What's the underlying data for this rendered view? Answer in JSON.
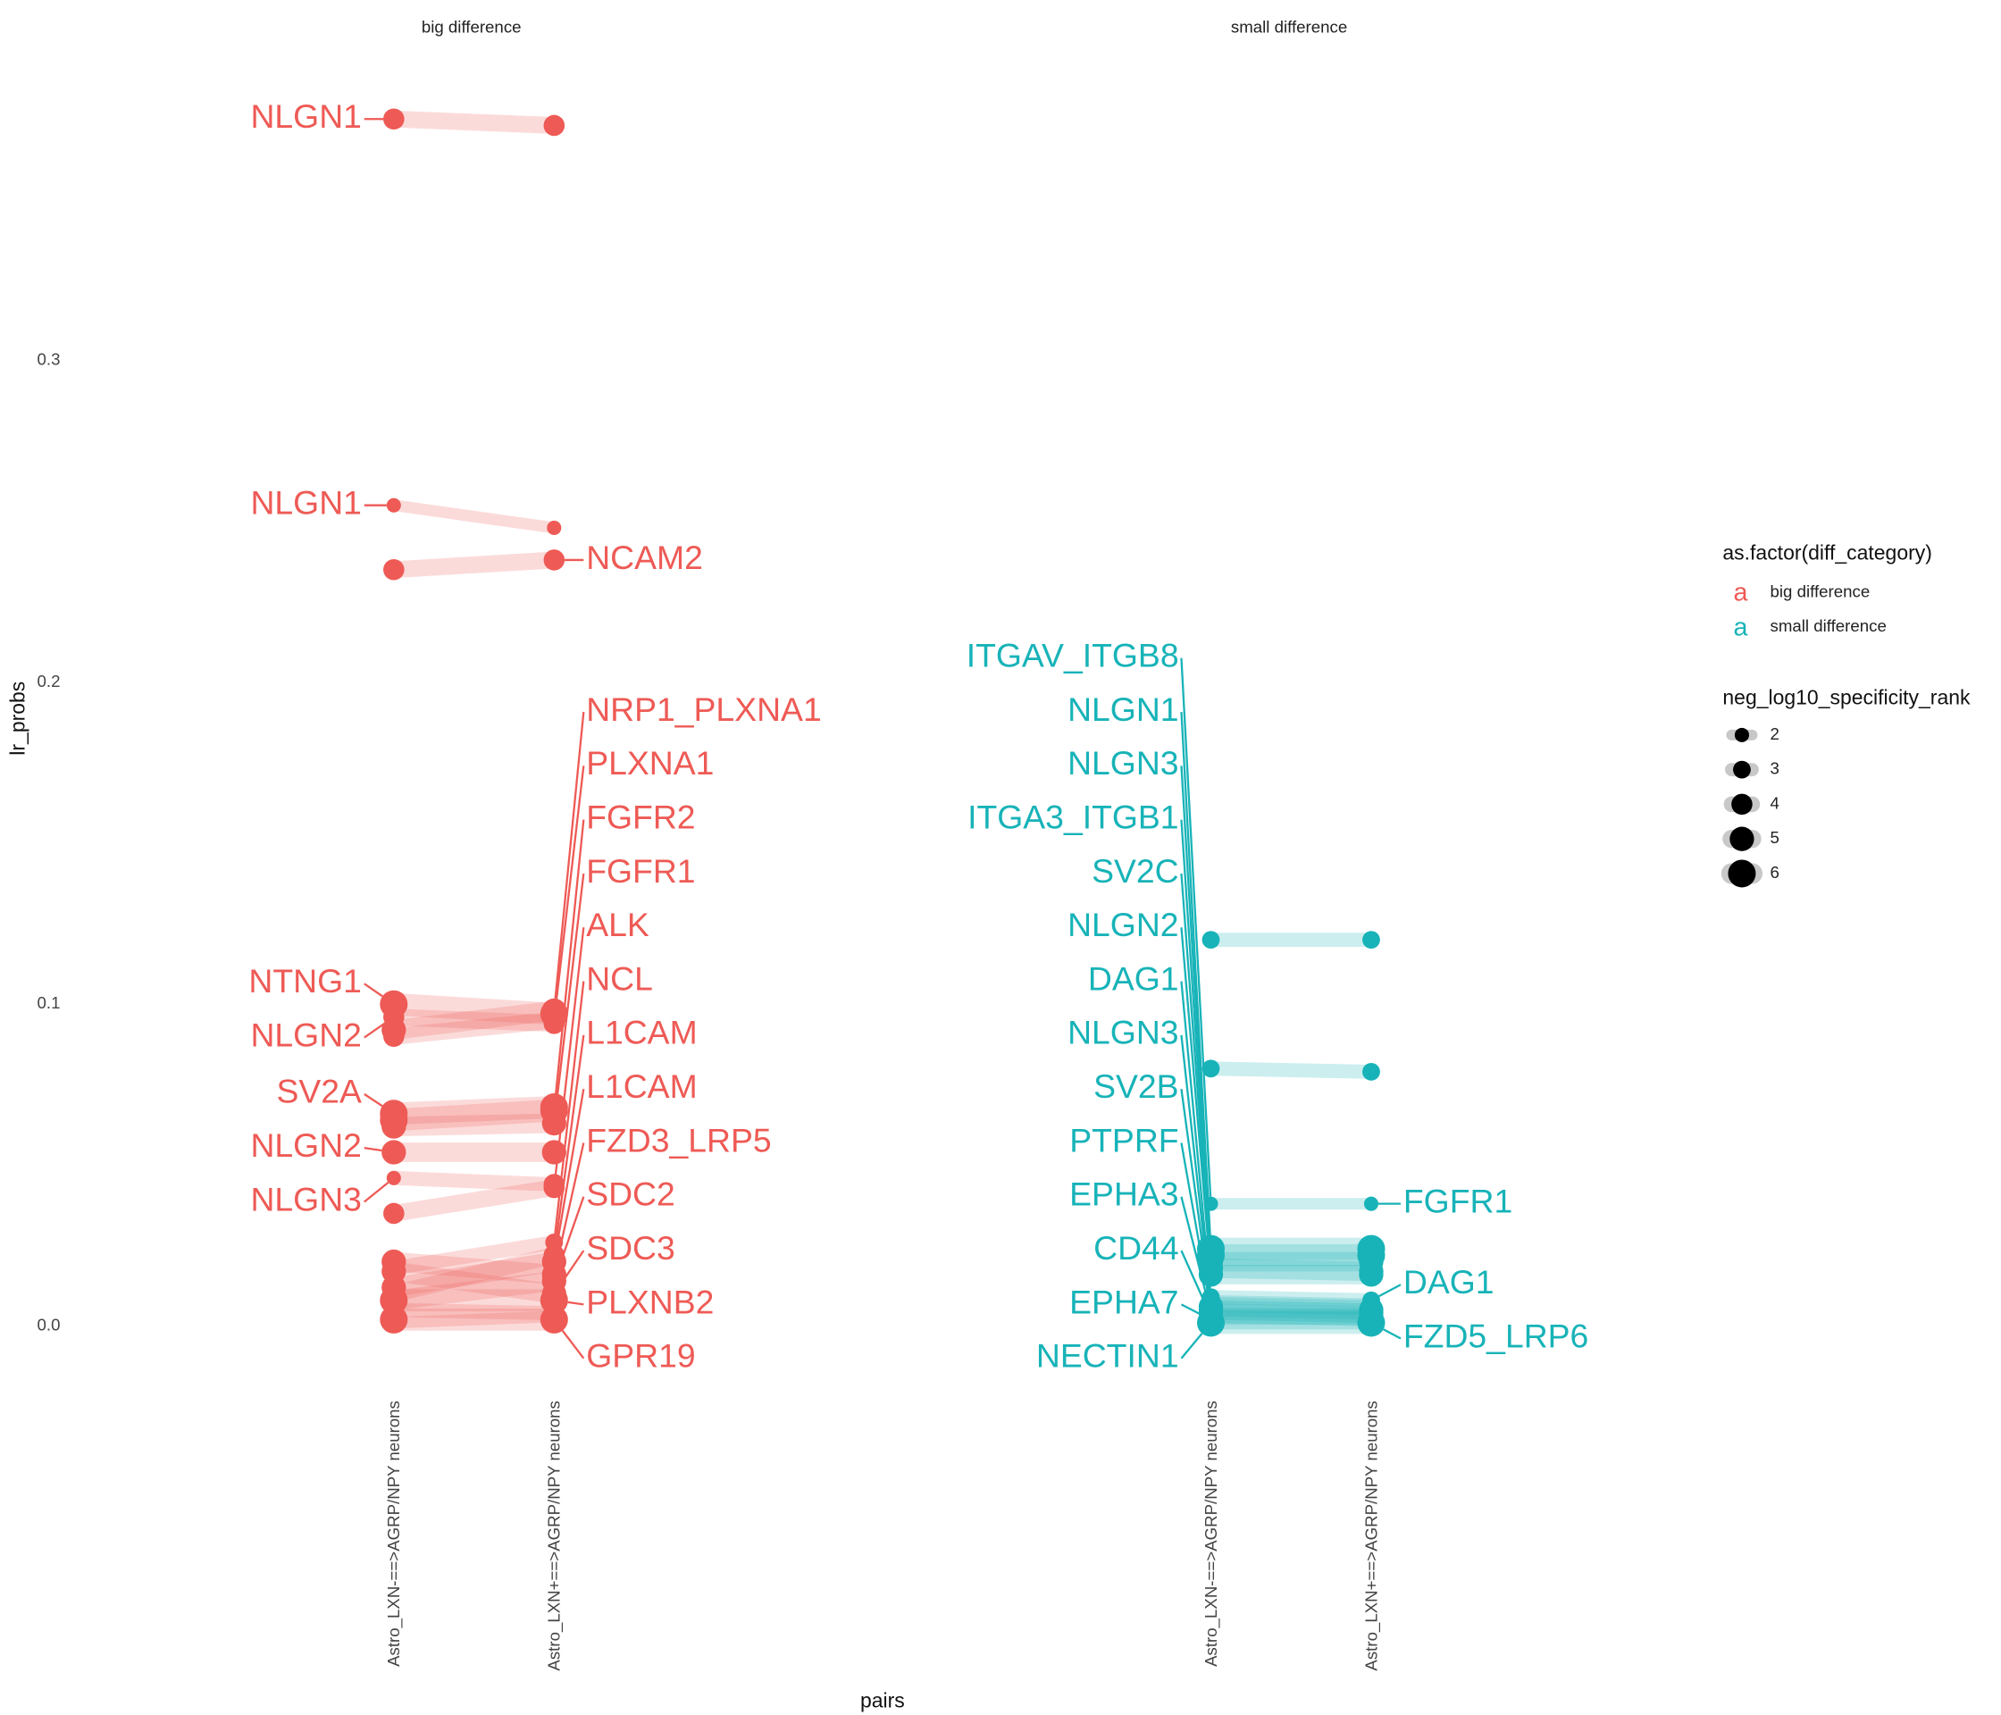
{
  "chart_data": {
    "type": "slope",
    "x_label": "pairs",
    "y_label": "lr_probs",
    "categories": [
      "Astro_LXN-==>AGRP/NPY neurons",
      "Astro_LXN+==>AGRP/NPY neurons"
    ],
    "ylim": [
      -0.018,
      0.398
    ],
    "yticks": [
      {
        "value": 0,
        "label": "0.0"
      },
      0.1,
      0.2,
      0.3
    ],
    "minor_yticks": [
      0.05,
      0.15,
      0.25,
      0.35
    ],
    "grid": true,
    "legend": {
      "position": "right",
      "color_title": "as.factor(diff_category)",
      "key_glyph": "a",
      "size_title": "neg_log10_specificity_rank",
      "size_breaks": [
        2,
        3,
        4,
        5,
        6
      ]
    },
    "facets": [
      {
        "name": "big difference",
        "color": "#ee5a55",
        "pairs": [
          {
            "values": [
              0.375,
              0.373
            ],
            "sizes": [
              4,
              4
            ],
            "labels": [
              "NLGN1",
              null
            ]
          },
          {
            "values": [
              0.255,
              0.248
            ],
            "sizes": [
              2,
              2
            ],
            "labels": [
              "NLGN1",
              null
            ]
          },
          {
            "values": [
              0.235,
              0.238
            ],
            "sizes": [
              4,
              4
            ],
            "labels": [
              null,
              "NCAM2"
            ]
          },
          {
            "values": [
              0.1,
              0.097
            ],
            "sizes": [
              6,
              6
            ],
            "labels": [
              "NTNG1",
              null
            ]
          },
          {
            "values": [
              0.096,
              0.094
            ],
            "sizes": [
              4,
              4
            ],
            "labels": [
              "NLGN2",
              null
            ]
          },
          {
            "values": [
              0.066,
              0.068
            ],
            "sizes": [
              6,
              6
            ],
            "labels": [
              "SV2A",
              null
            ]
          },
          {
            "values": [
              0.054,
              0.054
            ],
            "sizes": [
              5,
              5
            ],
            "labels": [
              "NLGN2",
              null
            ]
          },
          {
            "values": [
              0.046,
              0.044
            ],
            "sizes": [
              2,
              4
            ],
            "labels": [
              "NLGN3",
              null
            ]
          },
          {
            "values": [
              0.035,
              0.043
            ],
            "sizes": [
              4,
              4
            ],
            "labels": [
              null,
              "ALK"
            ]
          },
          {
            "values": [
              0.012,
              0.02
            ],
            "sizes": [
              5,
              5
            ],
            "labels": [
              null,
              "L1CAM"
            ]
          },
          {
            "values": [
              0.018,
              0.026
            ],
            "sizes": [
              3,
              3
            ],
            "labels": [
              null,
              "NCL"
            ]
          },
          {
            "values": [
              0.01,
              0.022
            ],
            "sizes": [
              4,
              4
            ],
            "labels": [
              null,
              "L1CAM"
            ]
          },
          {
            "values": [
              0.008,
              0.014
            ],
            "sizes": [
              5,
              5
            ],
            "labels": [
              null,
              "SDC2"
            ]
          },
          {
            "values": [
              0.017,
              0.01
            ],
            "sizes": [
              5,
              5
            ],
            "labels": [
              null,
              "SDC3"
            ]
          },
          {
            "values": [
              0.092,
              0.098
            ],
            "sizes": [
              5,
              5
            ],
            "labels": [
              null,
              "NRP1_PLXNA1"
            ]
          },
          {
            "values": [
              0.09,
              0.095
            ],
            "sizes": [
              4,
              4
            ],
            "labels": [
              null,
              "PLXNA1"
            ]
          },
          {
            "values": [
              0.064,
              0.067
            ],
            "sizes": [
              6,
              6
            ],
            "labels": [
              null,
              "FGFR2"
            ]
          },
          {
            "values": [
              0.062,
              0.063
            ],
            "sizes": [
              5,
              5
            ],
            "labels": [
              null,
              "FGFR1"
            ]
          },
          {
            "values": [
              0.02,
              0.016
            ],
            "sizes": [
              5,
              5
            ],
            "labels": [
              null,
              "FZD3_LRP5"
            ]
          },
          {
            "values": [
              0.008,
              0.008
            ],
            "sizes": [
              6,
              6
            ],
            "labels": [
              null,
              "PLXNB2"
            ]
          },
          {
            "values": [
              0.002,
              0.002
            ],
            "sizes": [
              6,
              6
            ],
            "labels": [
              null,
              "GPR19"
            ]
          },
          {
            "values": [
              0.001,
              0.003
            ],
            "sizes": [
              2,
              2
            ],
            "labels": [
              null,
              null
            ]
          },
          {
            "values": [
              0.005,
              0.004
            ],
            "sizes": [
              3,
              3
            ],
            "labels": [
              null,
              null
            ]
          }
        ]
      },
      {
        "name": "small difference",
        "color": "#17b3b8",
        "pairs": [
          {
            "values": [
              0.12,
              0.12
            ],
            "sizes": [
              3,
              3
            ],
            "labels": [
              null,
              null
            ]
          },
          {
            "values": [
              0.08,
              0.079
            ],
            "sizes": [
              3,
              3
            ],
            "labels": [
              null,
              null
            ]
          },
          {
            "values": [
              0.038,
              0.038
            ],
            "sizes": [
              2,
              2
            ],
            "labels": [
              "ITGAV_ITGB8",
              "FGFR1"
            ]
          },
          {
            "values": [
              0.024,
              0.024
            ],
            "sizes": [
              6,
              6
            ],
            "labels": [
              "NLGN1",
              null
            ]
          },
          {
            "values": [
              0.022,
              0.022
            ],
            "sizes": [
              6,
              6
            ],
            "labels": [
              "NLGN3",
              null
            ]
          },
          {
            "values": [
              0.02,
              0.02
            ],
            "sizes": [
              5,
              5
            ],
            "labels": [
              "ITGA3_ITGB1",
              null
            ]
          },
          {
            "values": [
              0.018,
              0.017
            ],
            "sizes": [
              5,
              5
            ],
            "labels": [
              "SV2C",
              null
            ]
          },
          {
            "values": [
              0.016,
              0.016
            ],
            "sizes": [
              5,
              5
            ],
            "labels": [
              "NLGN2",
              null
            ]
          },
          {
            "values": [
              0.009,
              0.008
            ],
            "sizes": [
              3,
              3
            ],
            "labels": [
              "DAG1",
              "DAG1"
            ]
          },
          {
            "values": [
              0.007,
              0.006
            ],
            "sizes": [
              4,
              4
            ],
            "labels": [
              "NLGN3",
              null
            ]
          },
          {
            "values": [
              0.006,
              0.005
            ],
            "sizes": [
              5,
              5
            ],
            "labels": [
              "SV2B",
              null
            ]
          },
          {
            "values": [
              0.005,
              0.004
            ],
            "sizes": [
              5,
              5
            ],
            "labels": [
              "PTPRF",
              null
            ]
          },
          {
            "values": [
              0.004,
              0.003
            ],
            "sizes": [
              5,
              5
            ],
            "labels": [
              "EPHA3",
              null
            ]
          },
          {
            "values": [
              0.003,
              0.003
            ],
            "sizes": [
              4,
              4
            ],
            "labels": [
              "CD44",
              null
            ]
          },
          {
            "values": [
              0.002,
              0.002
            ],
            "sizes": [
              5,
              5
            ],
            "labels": [
              "EPHA7",
              null
            ]
          },
          {
            "values": [
              0.001,
              0.001
            ],
            "sizes": [
              6,
              6
            ],
            "labels": [
              "NECTIN1",
              "FZD5_LRP6"
            ]
          }
        ]
      }
    ]
  }
}
